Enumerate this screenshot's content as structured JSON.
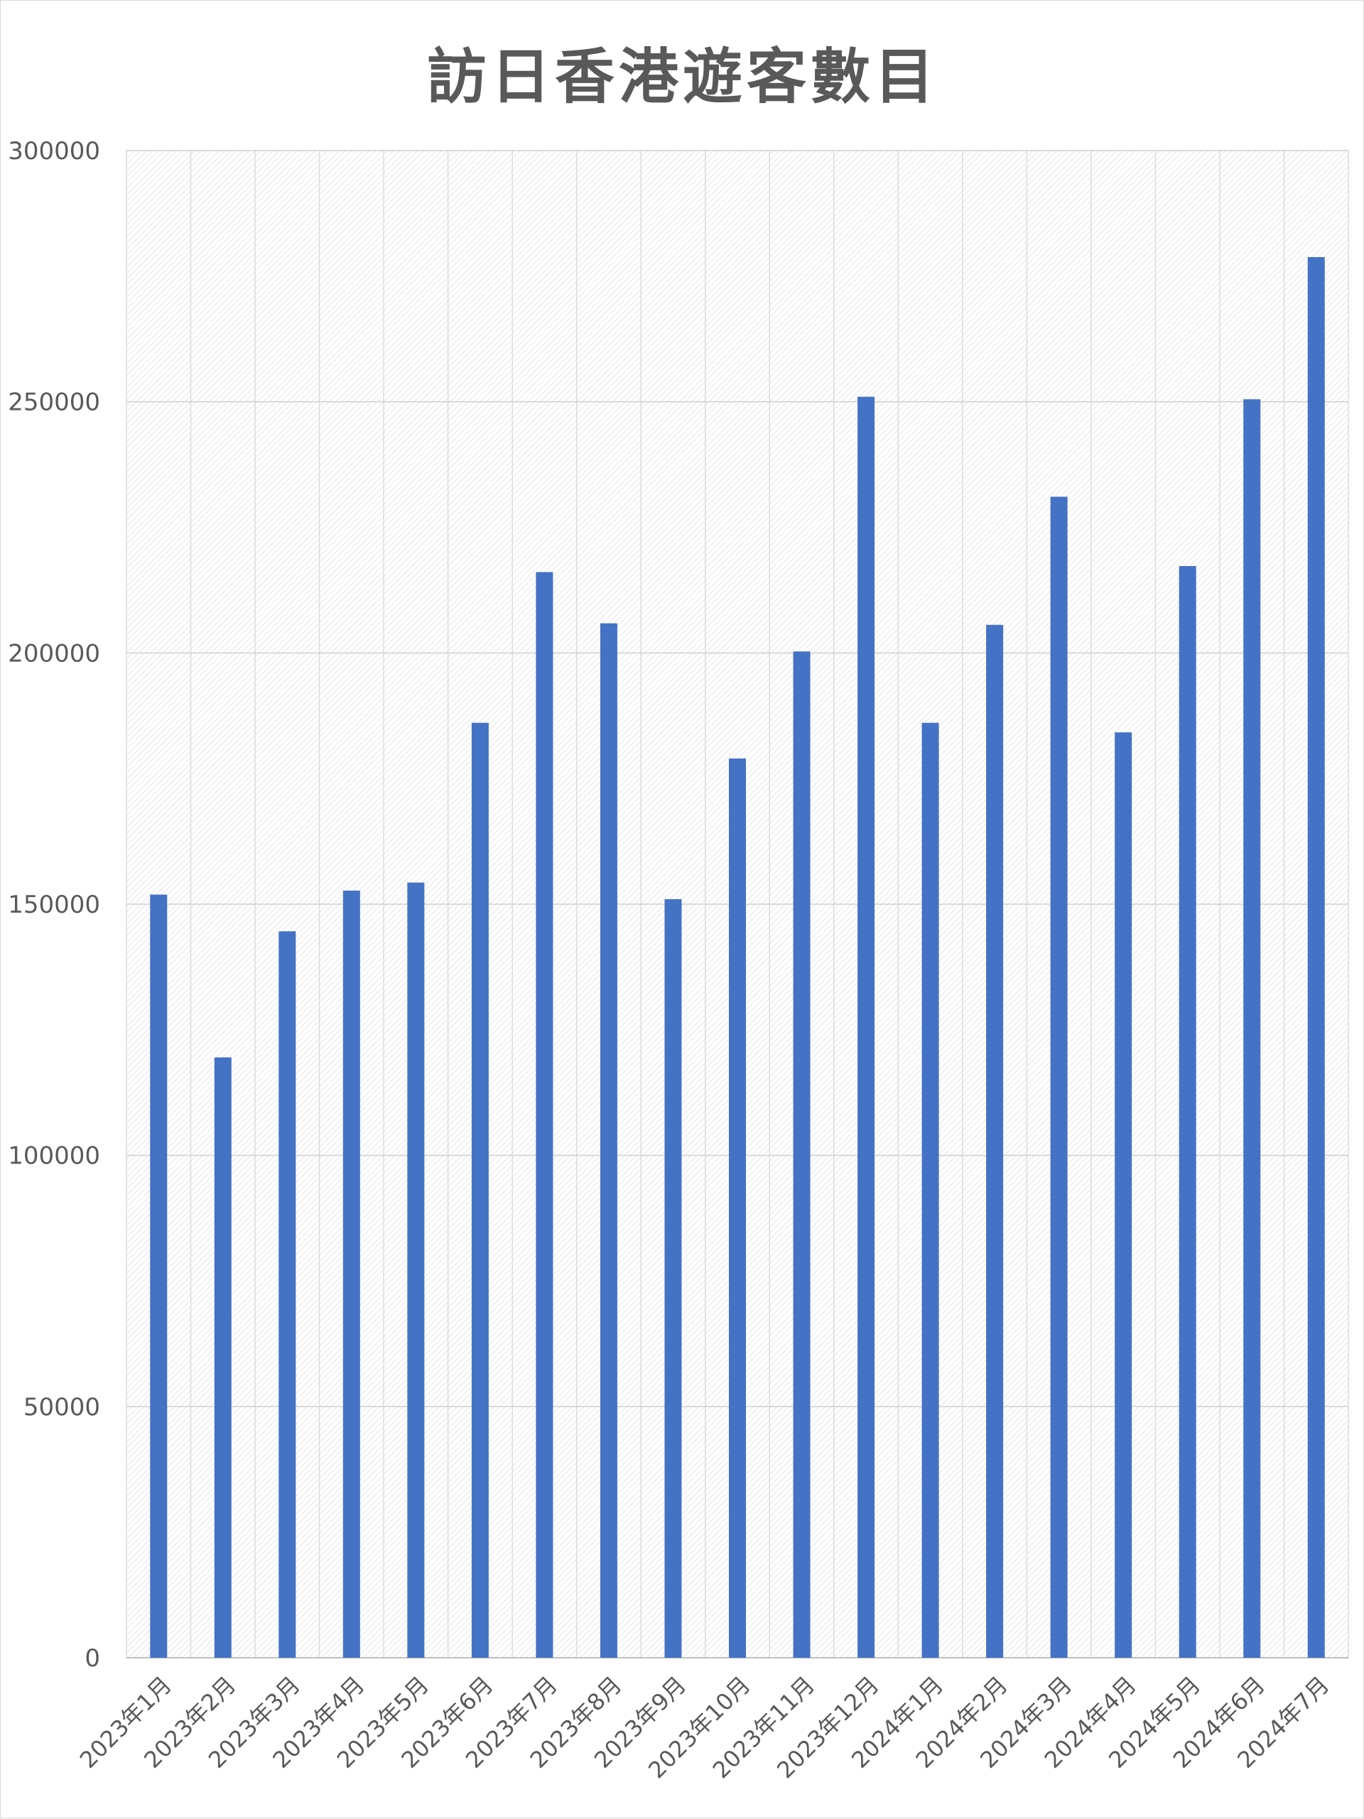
{
  "chart_data": {
    "type": "bar",
    "title": "訪日香港遊客數目",
    "xlabel": "",
    "ylabel": "",
    "ylim": [
      0,
      300000
    ],
    "yticks": [
      0,
      50000,
      100000,
      150000,
      200000,
      250000,
      300000
    ],
    "grid": true,
    "legend": "none",
    "bar_color": "#4472C4",
    "categories": [
      "2023年1月",
      "2023年2月",
      "2023年3月",
      "2023年4月",
      "2023年5月",
      "2023年6月",
      "2023年7月",
      "2023年8月",
      "2023年9月",
      "2023年10月",
      "2023年11月",
      "2023年12月",
      "2024年1月",
      "2024年2月",
      "2024年3月",
      "2024年4月",
      "2024年5月",
      "2024年6月",
      "2024年7月"
    ],
    "values": [
      151900,
      119500,
      144600,
      152700,
      154300,
      186100,
      216100,
      205900,
      151000,
      179000,
      200300,
      251000,
      186100,
      205600,
      231100,
      184200,
      217300,
      250500,
      278800
    ]
  }
}
